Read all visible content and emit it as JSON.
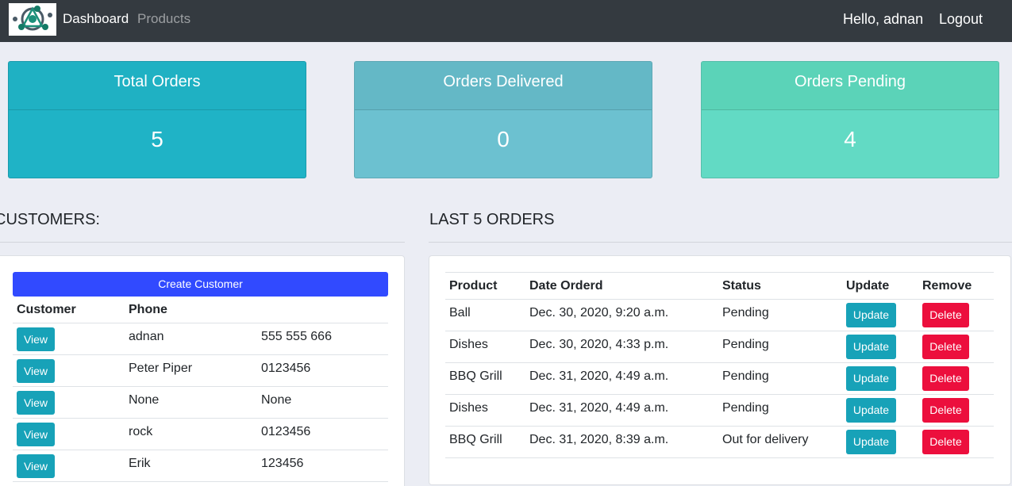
{
  "nav": {
    "logo_icon": "network-nodes-icon",
    "dashboard": "Dashboard",
    "products": "Products",
    "greeting": "Hello, adnan",
    "logout": "Logout"
  },
  "stats": {
    "total": {
      "title": "Total Orders",
      "value": "5",
      "color": "#1fb3c6"
    },
    "delivered": {
      "title": "Orders Delivered",
      "value": "0",
      "color": "#6cc1d0"
    },
    "pending": {
      "title": "Orders Pending",
      "value": "4",
      "color": "#62dac4"
    }
  },
  "customers": {
    "title": "CUSTOMERS:",
    "create_button": "Create Customer",
    "columns": [
      "Customer",
      "Phone"
    ],
    "view_label": "View",
    "rows": [
      {
        "name": "adnan",
        "phone": "555 555 666"
      },
      {
        "name": "Peter Piper",
        "phone": "0123456"
      },
      {
        "name": "None",
        "phone": "None"
      },
      {
        "name": "rock",
        "phone": "0123456"
      },
      {
        "name": "Erik",
        "phone": "123456"
      }
    ]
  },
  "orders": {
    "title": "LAST 5 ORDERS",
    "columns": [
      "Product",
      "Date Orderd",
      "Status",
      "Update",
      "Remove"
    ],
    "update_label": "Update",
    "delete_label": "Delete",
    "rows": [
      {
        "product": "Ball",
        "date": "Dec. 30, 2020, 9:20 a.m.",
        "status": "Pending"
      },
      {
        "product": "Dishes",
        "date": "Dec. 30, 2020, 4:33 p.m.",
        "status": "Pending"
      },
      {
        "product": "BBQ Grill",
        "date": "Dec. 31, 2020, 4:49 a.m.",
        "status": "Pending"
      },
      {
        "product": "Dishes",
        "date": "Dec. 31, 2020, 4:49 a.m.",
        "status": "Pending"
      },
      {
        "product": "BBQ Grill",
        "date": "Dec. 31, 2020, 8:39 a.m.",
        "status": "Out for delivery"
      }
    ]
  },
  "colors": {
    "navbar": "#343a40",
    "primary_button": "#314aff",
    "info_button": "#17a2b8",
    "danger_button": "#ec0f3d"
  }
}
